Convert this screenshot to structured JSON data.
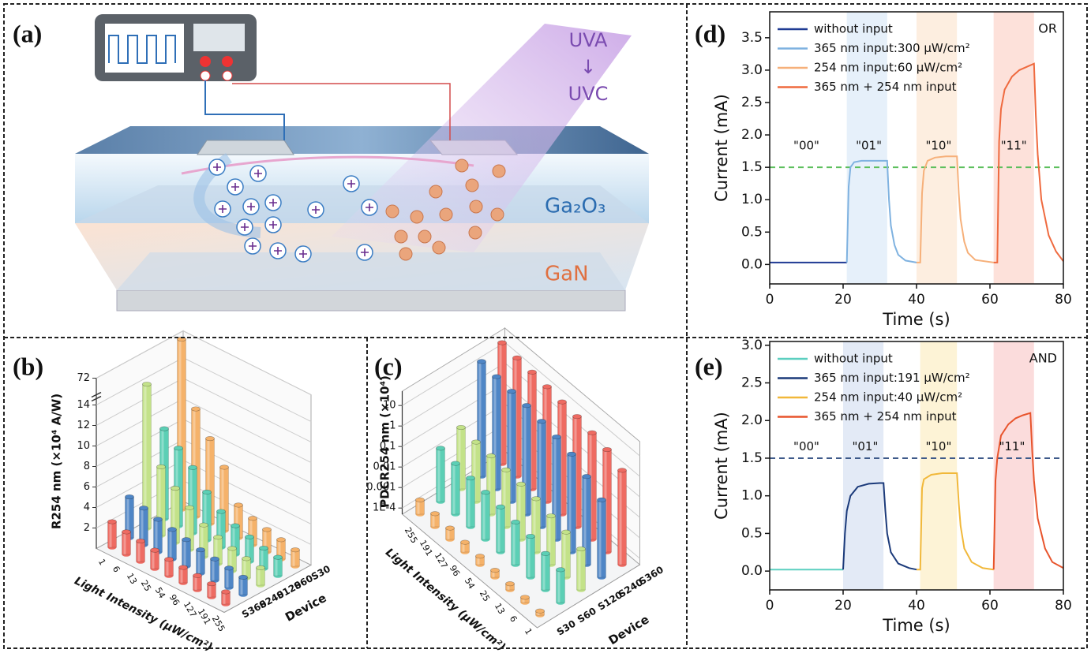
{
  "panel_labels": [
    "(a)",
    "(b)",
    "(c)",
    "(d)",
    "(e)"
  ],
  "diagram": {
    "uv_top": "UVA",
    "arrow": "↓",
    "uv_bottom": "UVC",
    "layer_top": "Ga₂O₃",
    "layer_bottom": "GaN"
  },
  "chart_data": [
    {
      "type": "bar3d",
      "ylabel": "R254 nm (×10⁴ A/W)",
      "xlabel": "Light Intensity (μW/cm²)",
      "zlabel": "Device",
      "categories": [
        "1",
        "6",
        "13",
        "25",
        "54",
        "96",
        "127",
        "191",
        "255"
      ],
      "series": [
        {
          "name": "S30",
          "color": "#f5b26a",
          "values": [
            72,
            10.5,
            8.3,
            6.2,
            3.2,
            2.6,
            2.2,
            1.9,
            1.6
          ]
        },
        {
          "name": "S60",
          "color": "#5ccfb5",
          "values": [
            8.8,
            7.6,
            6.4,
            4.7,
            3.5,
            2.8,
            2.4,
            2.0,
            1.8
          ]
        },
        {
          "name": "S120",
          "color": "#c3e289",
          "values": [
            15.5,
            6.7,
            5.3,
            4.1,
            3.1,
            2.6,
            2.2,
            1.9,
            1.7
          ]
        },
        {
          "name": "S240",
          "color": "#4f86c6",
          "values": [
            4.0,
            3.6,
            3.2,
            2.9,
            2.6,
            2.3,
            2.1,
            1.9,
            1.7
          ]
        },
        {
          "name": "S360",
          "color": "#ee6b62",
          "values": [
            2.5,
            2.2,
            2.0,
            1.8,
            1.6,
            1.5,
            1.4,
            1.3,
            1.2
          ]
        }
      ],
      "ylim": [
        0,
        72
      ],
      "yticks": [
        2,
        4,
        6,
        8,
        10,
        12,
        14,
        72
      ],
      "axis_break": true,
      "grid": true
    },
    {
      "type": "bar3d",
      "ylabel": "PDCR254 nm (×10⁴)",
      "xlabel": "Light Intensity (μW/cm²)",
      "zlabel": "Device",
      "categories": [
        "255",
        "191",
        "127",
        "96",
        "54",
        "25",
        "13",
        "6",
        "1"
      ],
      "series": [
        {
          "name": "S30",
          "color": "#f5b26a",
          "values": [
            0.00025,
            0.00022,
            0.00018,
            0.00015,
            0.00013,
            0.00011,
            0.0001,
            9e-05,
            8e-05
          ]
        },
        {
          "name": "S60",
          "color": "#5ccfb5",
          "values": [
            0.02,
            0.015,
            0.012,
            0.01,
            0.008,
            0.006,
            0.005,
            0.003,
            0.002
          ]
        },
        {
          "name": "S120",
          "color": "#c3e289",
          "values": [
            0.05,
            0.04,
            0.035,
            0.03,
            0.025,
            0.02,
            0.012,
            0.008,
            0.005
          ]
        },
        {
          "name": "S240",
          "color": "#4f86c6",
          "values": [
            20,
            15,
            12,
            10,
            7,
            5,
            3,
            1,
            0.3
          ]
        },
        {
          "name": "S360",
          "color": "#ee6b62",
          "values": [
            40,
            30,
            25,
            20,
            15,
            12,
            8,
            5,
            2
          ]
        }
      ],
      "log_y": true,
      "ylim": [
        5e-05,
        50
      ],
      "yticks": [
        {
          "value": 0.0001,
          "label": "1E-4"
        },
        0.001,
        0.01,
        0.1,
        1,
        10
      ],
      "grid": true
    },
    {
      "type": "line",
      "xlabel": "Time (s)",
      "ylabel": "Current (mA)",
      "corner_label": "OR",
      "xlim": [
        0,
        80
      ],
      "xticks": [
        0,
        20,
        40,
        60,
        80
      ],
      "ylim": [
        -0.3,
        3.9
      ],
      "yticks": [
        {
          "value": 0,
          "label": "0.0"
        },
        0.5,
        {
          "value": 1,
          "label": "1.0"
        },
        1.5,
        {
          "value": 2,
          "label": "2.0"
        },
        2.5,
        {
          "value": 3,
          "label": "3.0"
        },
        3.5
      ],
      "threshold": 1.5,
      "threshold_color": "#5cbf5c",
      "spans": [
        {
          "x": [
            21,
            32
          ],
          "color": "#e6f0fa"
        },
        {
          "x": [
            40,
            51
          ],
          "color": "#fdeee0"
        },
        {
          "x": [
            61,
            72
          ],
          "color": "#fde1da"
        }
      ],
      "annotations": [
        {
          "text": "\"00\"",
          "x": 10,
          "y": 1.83
        },
        {
          "text": "\"01\"",
          "x": 27,
          "y": 1.83
        },
        {
          "text": "\"10\"",
          "x": 46,
          "y": 1.83
        },
        {
          "text": "\"11\"",
          "x": 66.5,
          "y": 1.83
        }
      ],
      "legend": "upper left",
      "series": [
        {
          "name": "without input",
          "color": "#1f3a93",
          "x": [
            0,
            21
          ],
          "values": [
            0.03,
            0.03
          ]
        },
        {
          "name": "365 nm input:300 μW/cm²",
          "color": "#7fb2e0",
          "x": [
            21,
            21.5,
            22,
            23,
            25,
            28,
            32,
            32.5,
            33,
            34,
            35,
            37,
            40
          ],
          "values": [
            0.03,
            1.2,
            1.5,
            1.58,
            1.6,
            1.6,
            1.6,
            1.0,
            0.6,
            0.3,
            0.15,
            0.06,
            0.03
          ]
        },
        {
          "name": "254 nm input:60 μW/cm²",
          "color": "#f6b07a",
          "x": [
            40,
            41,
            41.5,
            42,
            43,
            45,
            48,
            51,
            51.5,
            52,
            53,
            54,
            56,
            61
          ],
          "values": [
            0.03,
            0.03,
            1.1,
            1.45,
            1.6,
            1.65,
            1.67,
            1.67,
            1.1,
            0.7,
            0.35,
            0.18,
            0.07,
            0.03
          ]
        },
        {
          "name": "365 nm + 254 nm input",
          "color": "#ef6a3f",
          "x": [
            61,
            62,
            62.5,
            63,
            64,
            66,
            68,
            70,
            72,
            72.5,
            73,
            74,
            76,
            78,
            80
          ],
          "values": [
            0.03,
            0.03,
            1.9,
            2.4,
            2.7,
            2.9,
            3.0,
            3.05,
            3.1,
            2.3,
            1.7,
            1.0,
            0.45,
            0.2,
            0.05
          ]
        }
      ]
    },
    {
      "type": "line",
      "xlabel": "Time (s)",
      "ylabel": "Current (mA)",
      "corner_label": "AND",
      "xlim": [
        0,
        80
      ],
      "xticks": [
        0,
        20,
        40,
        60,
        80
      ],
      "ylim": [
        -0.25,
        3.05
      ],
      "yticks": [
        {
          "value": 0,
          "label": "0.0"
        },
        0.5,
        {
          "value": 1,
          "label": "1.0"
        },
        1.5,
        {
          "value": 2,
          "label": "2.0"
        },
        2.5,
        {
          "value": 3,
          "label": "3.0"
        }
      ],
      "threshold": 1.5,
      "threshold_color": "#3e5a8a",
      "spans": [
        {
          "x": [
            20,
            31
          ],
          "color": "#e3eaf6"
        },
        {
          "x": [
            41,
            51
          ],
          "color": "#fdf3d6"
        },
        {
          "x": [
            61,
            72
          ],
          "color": "#fbdcdc"
        }
      ],
      "annotations": [
        {
          "text": "\"00\"",
          "x": 10,
          "y": 1.65
        },
        {
          "text": "\"01\"",
          "x": 26,
          "y": 1.65
        },
        {
          "text": "\"10\"",
          "x": 46,
          "y": 1.65
        },
        {
          "text": "\"11\"",
          "x": 66,
          "y": 1.65
        }
      ],
      "legend": "upper left",
      "series": [
        {
          "name": "without input",
          "color": "#5ccfc0",
          "x": [
            0,
            20
          ],
          "values": [
            0.02,
            0.02
          ]
        },
        {
          "name": "365 nm input:191 μW/cm²",
          "color": "#1b3a7a",
          "x": [
            20,
            20.5,
            21,
            22,
            24,
            27,
            30,
            31,
            31.5,
            32,
            33,
            35,
            38,
            40
          ],
          "values": [
            0.02,
            0.5,
            0.8,
            1.0,
            1.12,
            1.16,
            1.17,
            1.17,
            0.8,
            0.5,
            0.25,
            0.1,
            0.04,
            0.02
          ]
        },
        {
          "name": "254 nm input:40 μW/cm²",
          "color": "#f1b83a",
          "x": [
            40,
            41,
            41.5,
            42,
            44,
            47,
            51,
            51.5,
            52,
            53,
            55,
            58,
            61
          ],
          "values": [
            0.02,
            0.02,
            1.1,
            1.22,
            1.28,
            1.3,
            1.3,
            0.9,
            0.6,
            0.3,
            0.12,
            0.04,
            0.02
          ]
        },
        {
          "name": "365 nm + 254 nm input",
          "color": "#e8542c",
          "x": [
            61,
            61.5,
            62,
            63,
            65,
            67,
            69,
            71,
            71.5,
            72,
            73,
            75,
            77,
            80
          ],
          "values": [
            0.02,
            1.2,
            1.5,
            1.8,
            1.95,
            2.03,
            2.07,
            2.1,
            1.6,
            1.2,
            0.7,
            0.3,
            0.12,
            0.04
          ]
        }
      ]
    }
  ]
}
